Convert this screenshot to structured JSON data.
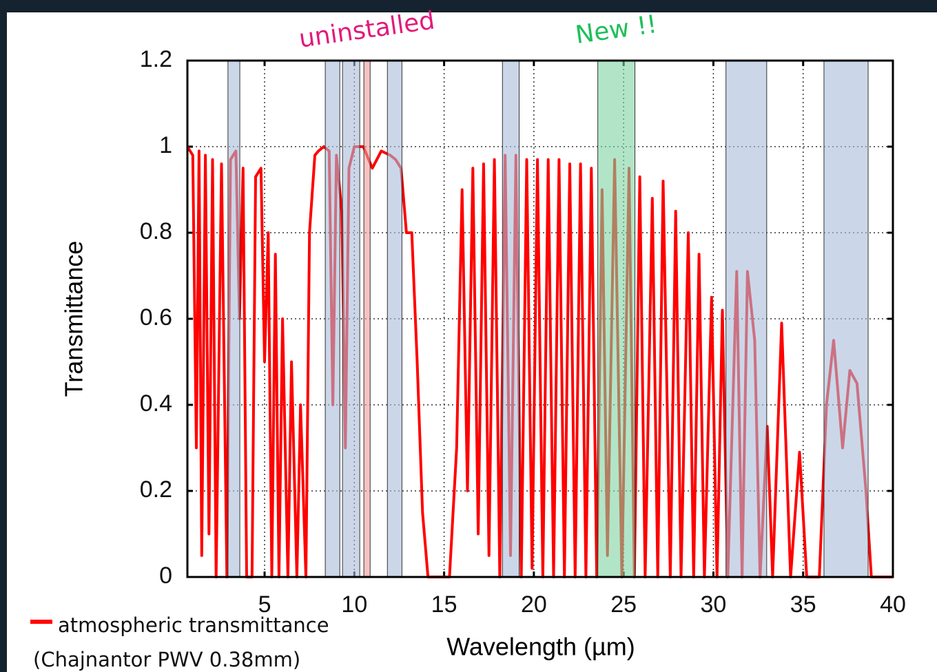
{
  "chart_data": {
    "type": "line",
    "xlabel": "Wavelength (µm)",
    "ylabel": "Transmittance",
    "xlim": [
      0.7,
      40
    ],
    "ylim": [
      0,
      1.2
    ],
    "xticks": [
      5,
      10,
      15,
      20,
      25,
      30,
      35,
      40
    ],
    "yticks": [
      0,
      0.2,
      0.4,
      0.6,
      0.8,
      1,
      1.2
    ],
    "grid": true,
    "legend": "lower left",
    "legend_note": "(Chajnantor PWV 0.38mm)",
    "series": [
      {
        "name": "atmospheric transmittance",
        "color": "#ff0000",
        "x": [
          0.7,
          1.0,
          1.2,
          1.35,
          1.5,
          1.7,
          1.9,
          2.1,
          2.3,
          2.6,
          2.9,
          3.1,
          3.4,
          3.6,
          3.8,
          4.0,
          4.3,
          4.5,
          4.8,
          5.0,
          5.2,
          5.4,
          5.6,
          5.8,
          6.0,
          6.3,
          6.5,
          6.8,
          7.0,
          7.3,
          7.5,
          7.8,
          8.0,
          8.3,
          8.6,
          8.8,
          9.0,
          9.3,
          9.5,
          9.7,
          10.0,
          10.5,
          11.0,
          11.5,
          12.0,
          12.3,
          12.6,
          12.9,
          13.2,
          13.5,
          13.8,
          14.1,
          15.3,
          15.7,
          16.0,
          16.3,
          16.6,
          16.9,
          17.2,
          17.5,
          17.8,
          18.1,
          18.4,
          18.7,
          19.0,
          19.3,
          19.6,
          19.9,
          20.2,
          20.5,
          20.8,
          21.1,
          21.4,
          21.7,
          22.0,
          22.3,
          22.6,
          22.9,
          23.2,
          23.5,
          23.8,
          24.1,
          24.5,
          24.9,
          25.3,
          25.6,
          25.9,
          26.2,
          26.6,
          26.9,
          27.2,
          27.6,
          27.9,
          28.2,
          28.6,
          28.9,
          29.2,
          29.5,
          29.9,
          30.2,
          30.5,
          30.8,
          31.3,
          31.6,
          31.9,
          32.3,
          32.6,
          33.0,
          33.3,
          33.8,
          34.3,
          34.8,
          35.2,
          35.9,
          36.3,
          36.7,
          37.2,
          37.6,
          38.0,
          38.5,
          38.8,
          40
        ],
        "values": [
          1.0,
          0.98,
          0.3,
          0.99,
          0.05,
          0.98,
          0.1,
          0.97,
          0.0,
          0.96,
          0.0,
          0.97,
          0.99,
          0.6,
          0.95,
          0.0,
          0.0,
          0.93,
          0.95,
          0.5,
          0.8,
          0.0,
          0.75,
          0.0,
          0.6,
          0.0,
          0.5,
          0.0,
          0.4,
          0.0,
          0.8,
          0.98,
          0.99,
          1.0,
          0.99,
          0.4,
          0.98,
          0.85,
          0.3,
          0.95,
          1.0,
          1.0,
          0.95,
          0.99,
          0.98,
          0.97,
          0.95,
          0.8,
          0.8,
          0.5,
          0.15,
          0.0,
          0.0,
          0.3,
          0.9,
          0.2,
          0.95,
          0.1,
          0.96,
          0.05,
          0.97,
          0.0,
          0.98,
          0.05,
          0.98,
          0.0,
          0.97,
          0.02,
          0.97,
          0.0,
          0.97,
          0.0,
          0.97,
          0.0,
          0.96,
          0.0,
          0.96,
          0.0,
          0.95,
          0.0,
          0.9,
          0.05,
          0.97,
          0.0,
          0.95,
          0.0,
          0.93,
          0.0,
          0.88,
          0.0,
          0.92,
          0.0,
          0.85,
          0.0,
          0.8,
          0.0,
          0.75,
          0.0,
          0.65,
          0.0,
          0.62,
          0.0,
          0.71,
          0.0,
          0.71,
          0.55,
          0.0,
          0.35,
          0.0,
          0.59,
          0.0,
          0.29,
          0.0,
          0.0,
          0.4,
          0.55,
          0.3,
          0.48,
          0.45,
          0.2,
          0.0,
          0.0
        ]
      }
    ],
    "bands": [
      {
        "range": [
          2.96,
          3.62
        ],
        "color": "#a9bcd8"
      },
      {
        "range": [
          8.38,
          9.19
        ],
        "color": "#a9bcd8"
      },
      {
        "range": [
          9.34,
          10.3
        ],
        "color": "#a9bcd8"
      },
      {
        "range": [
          10.53,
          10.88
        ],
        "color": "#f29a9a",
        "label": "uninstalled",
        "label_color": "#e3197b"
      },
      {
        "range": [
          11.84,
          12.65
        ],
        "color": "#a9bcd8"
      },
      {
        "range": [
          18.25,
          19.18
        ],
        "color": "#a9bcd8"
      },
      {
        "range": [
          23.56,
          25.63
        ],
        "color": "#7fd3a2",
        "label": "New !!",
        "label_color": "#1fbf5a"
      },
      {
        "range": [
          30.7,
          32.97
        ],
        "color": "#a9bcd8"
      },
      {
        "range": [
          36.16,
          38.62
        ],
        "color": "#a9bcd8"
      }
    ]
  }
}
